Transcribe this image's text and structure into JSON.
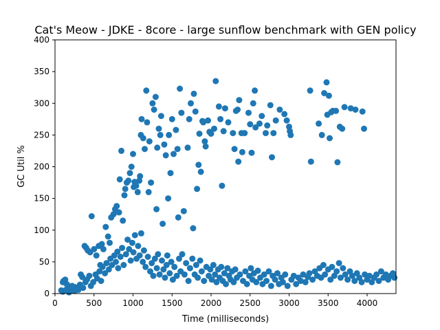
{
  "chart_data": {
    "type": "scatter",
    "title": "Cat's Meow - JDKE - 8core -  large sunflow benchmark with GEN policy",
    "xlabel": "Time (milliseconds)",
    "ylabel": "GC Util %",
    "xlim": [
      0,
      4370
    ],
    "ylim": [
      0,
      400
    ],
    "xticks": [
      0,
      500,
      1000,
      1500,
      2000,
      2500,
      3000,
      3500,
      4000
    ],
    "yticks": [
      0,
      50,
      100,
      150,
      200,
      250,
      300,
      350,
      400
    ],
    "grid": false,
    "marker_color": "#1f77b4",
    "series": [
      {
        "name": "",
        "points": [
          [
            80,
            5
          ],
          [
            100,
            18
          ],
          [
            110,
            20
          ],
          [
            130,
            22
          ],
          [
            150,
            15
          ],
          [
            170,
            12
          ],
          [
            200,
            8
          ],
          [
            230,
            5
          ],
          [
            260,
            10
          ],
          [
            300,
            6
          ],
          [
            330,
            30
          ],
          [
            350,
            26
          ],
          [
            380,
            75
          ],
          [
            400,
            72
          ],
          [
            420,
            68
          ],
          [
            450,
            65
          ],
          [
            470,
            122
          ],
          [
            500,
            70
          ],
          [
            530,
            60
          ],
          [
            560,
            75
          ],
          [
            580,
            45
          ],
          [
            600,
            78
          ],
          [
            620,
            70
          ],
          [
            650,
            105
          ],
          [
            680,
            90
          ],
          [
            700,
            80
          ],
          [
            720,
            120
          ],
          [
            750,
            125
          ],
          [
            770,
            133
          ],
          [
            790,
            138
          ],
          [
            820,
            128
          ],
          [
            830,
            180
          ],
          [
            850,
            225
          ],
          [
            870,
            115
          ],
          [
            890,
            155
          ],
          [
            900,
            165
          ],
          [
            920,
            175
          ],
          [
            940,
            178
          ],
          [
            960,
            190
          ],
          [
            980,
            200
          ],
          [
            1000,
            220
          ],
          [
            1010,
            168
          ],
          [
            1020,
            176
          ],
          [
            1040,
            170
          ],
          [
            1060,
            160
          ],
          [
            1080,
            178
          ],
          [
            1090,
            185
          ],
          [
            1100,
            250
          ],
          [
            1110,
            275
          ],
          [
            1130,
            245
          ],
          [
            1150,
            228
          ],
          [
            1170,
            320
          ],
          [
            1180,
            270
          ],
          [
            1200,
            160
          ],
          [
            1210,
            240
          ],
          [
            1230,
            175
          ],
          [
            1250,
            300
          ],
          [
            1270,
            290
          ],
          [
            1290,
            310
          ],
          [
            1300,
            133
          ],
          [
            1310,
            230
          ],
          [
            1330,
            260
          ],
          [
            1350,
            250
          ],
          [
            1360,
            280
          ],
          [
            1380,
            110
          ],
          [
            1400,
            235
          ],
          [
            1420,
            218
          ],
          [
            1450,
            150
          ],
          [
            1460,
            250
          ],
          [
            1480,
            190
          ],
          [
            1500,
            275
          ],
          [
            1520,
            220
          ],
          [
            1550,
            258
          ],
          [
            1570,
            228
          ],
          [
            1580,
            120
          ],
          [
            1600,
            323
          ],
          [
            1620,
            285
          ],
          [
            1650,
            130
          ],
          [
            1700,
            230
          ],
          [
            1720,
            275
          ],
          [
            1740,
            300
          ],
          [
            1770,
            103
          ],
          [
            1780,
            315
          ],
          [
            1800,
            287
          ],
          [
            1820,
            165
          ],
          [
            1840,
            203
          ],
          [
            1850,
            252
          ],
          [
            1870,
            192
          ],
          [
            1890,
            272
          ],
          [
            1900,
            270
          ],
          [
            1920,
            240
          ],
          [
            1930,
            232
          ],
          [
            1960,
            273
          ],
          [
            1980,
            255
          ],
          [
            2000,
            252
          ],
          [
            2040,
            260
          ],
          [
            2060,
            335
          ],
          [
            2100,
            295
          ],
          [
            2120,
            275
          ],
          [
            2140,
            170
          ],
          [
            2160,
            256
          ],
          [
            2180,
            292
          ],
          [
            2220,
            270
          ],
          [
            2280,
            253
          ],
          [
            2300,
            228
          ],
          [
            2320,
            288
          ],
          [
            2340,
            290
          ],
          [
            2350,
            208
          ],
          [
            2360,
            305
          ],
          [
            2390,
            253
          ],
          [
            2400,
            223
          ],
          [
            2430,
            253
          ],
          [
            2480,
            285
          ],
          [
            2500,
            267
          ],
          [
            2520,
            222
          ],
          [
            2540,
            300
          ],
          [
            2560,
            320
          ],
          [
            2570,
            262
          ],
          [
            2620,
            268
          ],
          [
            2650,
            280
          ],
          [
            2700,
            253
          ],
          [
            2720,
            265
          ],
          [
            2760,
            297
          ],
          [
            2780,
            215
          ],
          [
            2800,
            253
          ],
          [
            2830,
            273
          ],
          [
            2880,
            290
          ],
          [
            2940,
            283
          ],
          [
            2970,
            273
          ],
          [
            3000,
            263
          ],
          [
            3010,
            256
          ],
          [
            3020,
            250
          ],
          [
            3270,
            320
          ],
          [
            3280,
            208
          ],
          [
            3380,
            268
          ],
          [
            3420,
            250
          ],
          [
            3450,
            316
          ],
          [
            3480,
            333
          ],
          [
            3490,
            282
          ],
          [
            3510,
            312
          ],
          [
            3520,
            245
          ],
          [
            3540,
            286
          ],
          [
            3560,
            288
          ],
          [
            3600,
            288
          ],
          [
            3620,
            207
          ],
          [
            3650,
            263
          ],
          [
            3680,
            260
          ],
          [
            3710,
            294
          ],
          [
            3790,
            292
          ],
          [
            3850,
            290
          ],
          [
            3940,
            287
          ],
          [
            3960,
            260
          ],
          [
            100,
            3
          ],
          [
            140,
            6
          ],
          [
            180,
            2
          ],
          [
            220,
            12
          ],
          [
            250,
            4
          ],
          [
            280,
            7
          ],
          [
            320,
            14
          ],
          [
            360,
            9
          ],
          [
            390,
            18
          ],
          [
            410,
            22
          ],
          [
            440,
            28
          ],
          [
            460,
            12
          ],
          [
            490,
            18
          ],
          [
            520,
            30
          ],
          [
            540,
            24
          ],
          [
            570,
            35
          ],
          [
            590,
            20
          ],
          [
            610,
            42
          ],
          [
            640,
            32
          ],
          [
            660,
            48
          ],
          [
            690,
            38
          ],
          [
            710,
            55
          ],
          [
            730,
            45
          ],
          [
            760,
            60
          ],
          [
            780,
            50
          ],
          [
            800,
            66
          ],
          [
            810,
            40
          ],
          [
            840,
            58
          ],
          [
            860,
            72
          ],
          [
            880,
            45
          ],
          [
            910,
            62
          ],
          [
            930,
            85
          ],
          [
            950,
            70
          ],
          [
            970,
            52
          ],
          [
            990,
            80
          ],
          [
            1005,
            65
          ],
          [
            1025,
            92
          ],
          [
            1045,
            55
          ],
          [
            1065,
            75
          ],
          [
            1085,
            60
          ],
          [
            1105,
            95
          ],
          [
            1125,
            50
          ],
          [
            1140,
            68
          ],
          [
            1160,
            42
          ],
          [
            1190,
            58
          ],
          [
            1220,
            35
          ],
          [
            1240,
            48
          ],
          [
            1260,
            28
          ],
          [
            1280,
            55
          ],
          [
            1305,
            40
          ],
          [
            1320,
            62
          ],
          [
            1340,
            30
          ],
          [
            1370,
            52
          ],
          [
            1390,
            38
          ],
          [
            1410,
            25
          ],
          [
            1430,
            45
          ],
          [
            1440,
            60
          ],
          [
            1470,
            32
          ],
          [
            1490,
            50
          ],
          [
            1510,
            22
          ],
          [
            1530,
            42
          ],
          [
            1560,
            28
          ],
          [
            1590,
            55
          ],
          [
            1610,
            35
          ],
          [
            1630,
            62
          ],
          [
            1660,
            30
          ],
          [
            1680,
            48
          ],
          [
            1710,
            20
          ],
          [
            1730,
            40
          ],
          [
            1760,
            55
          ],
          [
            1790,
            30
          ],
          [
            1810,
            45
          ],
          [
            1830,
            25
          ],
          [
            1860,
            52
          ],
          [
            1880,
            35
          ],
          [
            1910,
            20
          ],
          [
            1940,
            42
          ],
          [
            1970,
            28
          ],
          [
            1990,
            38
          ],
          [
            2010,
            22
          ],
          [
            2030,
            45
          ],
          [
            2050,
            30
          ],
          [
            2070,
            18
          ],
          [
            2090,
            38
          ],
          [
            2110,
            25
          ],
          [
            2130,
            42
          ],
          [
            2150,
            20
          ],
          [
            2170,
            32
          ],
          [
            2190,
            15
          ],
          [
            2210,
            40
          ],
          [
            2230,
            28
          ],
          [
            2250,
            22
          ],
          [
            2270,
            35
          ],
          [
            2290,
            18
          ],
          [
            2310,
            38
          ],
          [
            2330,
            25
          ],
          [
            2370,
            30
          ],
          [
            2410,
            20
          ],
          [
            2440,
            35
          ],
          [
            2460,
            15
          ],
          [
            2490,
            28
          ],
          [
            2510,
            40
          ],
          [
            2530,
            22
          ],
          [
            2550,
            32
          ],
          [
            2580,
            18
          ],
          [
            2600,
            36
          ],
          [
            2630,
            25
          ],
          [
            2660,
            15
          ],
          [
            2680,
            30
          ],
          [
            2710,
            20
          ],
          [
            2740,
            35
          ],
          [
            2770,
            12
          ],
          [
            2790,
            28
          ],
          [
            2820,
            22
          ],
          [
            2850,
            32
          ],
          [
            2870,
            15
          ],
          [
            2900,
            25
          ],
          [
            2920,
            18
          ],
          [
            2950,
            30
          ],
          [
            2980,
            12
          ],
          [
            3030,
            22
          ],
          [
            3060,
            28
          ],
          [
            3090,
            15
          ],
          [
            3120,
            25
          ],
          [
            3150,
            20
          ],
          [
            3180,
            30
          ],
          [
            3210,
            18
          ],
          [
            3240,
            26
          ],
          [
            3260,
            32
          ],
          [
            3300,
            22
          ],
          [
            3330,
            35
          ],
          [
            3360,
            28
          ],
          [
            3390,
            40
          ],
          [
            3410,
            25
          ],
          [
            3440,
            45
          ],
          [
            3460,
            30
          ],
          [
            3500,
            38
          ],
          [
            3530,
            22
          ],
          [
            3550,
            42
          ],
          [
            3580,
            28
          ],
          [
            3610,
            35
          ],
          [
            3640,
            48
          ],
          [
            3660,
            25
          ],
          [
            3690,
            40
          ],
          [
            3720,
            30
          ],
          [
            3750,
            22
          ],
          [
            3780,
            35
          ],
          [
            3810,
            28
          ],
          [
            3840,
            20
          ],
          [
            3870,
            32
          ],
          [
            3900,
            25
          ],
          [
            3930,
            18
          ],
          [
            3970,
            30
          ],
          [
            4000,
            22
          ],
          [
            4030,
            28
          ],
          [
            4060,
            18
          ],
          [
            4090,
            25
          ],
          [
            4120,
            30
          ],
          [
            4150,
            20
          ],
          [
            4180,
            35
          ],
          [
            4210,
            25
          ],
          [
            4240,
            30
          ],
          [
            4270,
            22
          ],
          [
            4300,
            28
          ],
          [
            4330,
            32
          ],
          [
            4350,
            25
          ]
        ]
      }
    ]
  }
}
